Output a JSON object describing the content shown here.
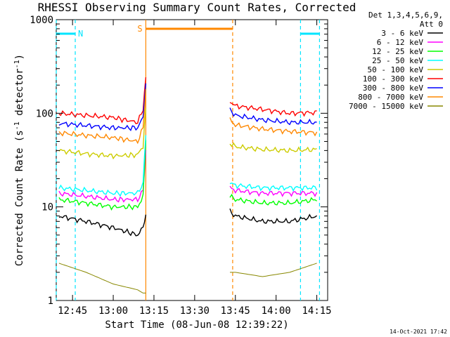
{
  "chart_data": {
    "type": "line",
    "title": "RHESSI Observing Summary Count Rates, Corrected",
    "xlabel": "Start Time (08-Jun-08 12:39:22)",
    "ylabel_main": "Corrected Count Rate (s",
    "ylabel_sup1": "-1",
    "ylabel_mid": " detector",
    "ylabel_sup2": "-1",
    "ylabel_end": ")",
    "yscale": "log",
    "ylim": [
      1,
      1000
    ],
    "xlim": [
      "12:39",
      "14:19"
    ],
    "x_ticks": [
      "12:45",
      "13:00",
      "13:15",
      "13:30",
      "13:45",
      "14:00",
      "14:15"
    ],
    "y_ticks": [
      "1",
      "10",
      "100",
      "1000"
    ],
    "legend_header": [
      "Det 1,3,4,5,6,9,",
      "Att 0"
    ],
    "series": [
      {
        "name": "3 - 6 keV",
        "color": "#000000",
        "x": [
          "12:40",
          "12:50",
          "13:00",
          "13:09",
          "13:11",
          "13:12",
          "13:43",
          "13:45",
          "13:55",
          "14:05",
          "14:15"
        ],
        "y": [
          8,
          7,
          6,
          5,
          6,
          8,
          9,
          8,
          7,
          7,
          8
        ]
      },
      {
        "name": "6 - 12 keV",
        "color": "#ff00ff",
        "x": [
          "12:40",
          "12:50",
          "13:00",
          "13:09",
          "13:11",
          "13:12",
          "13:43",
          "13:45",
          "13:55",
          "14:05",
          "14:15"
        ],
        "y": [
          14,
          13,
          12,
          12,
          15,
          40,
          16,
          15,
          14,
          14,
          14
        ]
      },
      {
        "name": "12 - 25 keV",
        "color": "#00ff00",
        "x": [
          "12:40",
          "12:50",
          "13:00",
          "13:09",
          "13:11",
          "13:12",
          "13:43",
          "13:45",
          "13:55",
          "14:05",
          "14:15"
        ],
        "y": [
          12,
          11,
          10,
          10,
          13,
          50,
          13,
          12,
          11,
          11,
          12
        ]
      },
      {
        "name": "25 - 50 keV",
        "color": "#00ffff",
        "x": [
          "12:40",
          "12:50",
          "13:00",
          "13:09",
          "13:11",
          "13:12",
          "13:43",
          "13:45",
          "13:55",
          "14:05",
          "14:15"
        ],
        "y": [
          16,
          15,
          14,
          14,
          18,
          60,
          18,
          17,
          16,
          16,
          16
        ]
      },
      {
        "name": "50 - 100 keV",
        "color": "#cccc00",
        "x": [
          "12:40",
          "12:50",
          "13:00",
          "13:09",
          "13:11",
          "13:12",
          "13:43",
          "13:45",
          "13:55",
          "14:05",
          "14:15"
        ],
        "y": [
          40,
          37,
          35,
          36,
          45,
          120,
          48,
          44,
          41,
          40,
          41
        ]
      },
      {
        "name": "100 - 300 keV",
        "color": "#ff0000",
        "x": [
          "12:40",
          "12:50",
          "13:00",
          "13:09",
          "13:11",
          "13:12",
          "13:43",
          "13:45",
          "13:55",
          "14:05",
          "14:15"
        ],
        "y": [
          100,
          95,
          90,
          80,
          110,
          240,
          135,
          120,
          110,
          100,
          102
        ]
      },
      {
        "name": "300 - 800 keV",
        "color": "#0000ff",
        "x": [
          "12:40",
          "12:50",
          "13:00",
          "13:09",
          "13:11",
          "13:12",
          "13:43",
          "13:45",
          "13:55",
          "14:05",
          "14:15"
        ],
        "y": [
          78,
          74,
          70,
          70,
          90,
          200,
          110,
          95,
          85,
          80,
          80
        ]
      },
      {
        "name": "800 - 7000 keV",
        "color": "#ff8800",
        "x": [
          "12:40",
          "12:50",
          "13:00",
          "13:09",
          "13:11",
          "13:12",
          "13:43",
          "13:45",
          "13:55",
          "14:05",
          "14:15"
        ],
        "y": [
          62,
          58,
          55,
          50,
          70,
          180,
          85,
          75,
          68,
          64,
          62
        ]
      },
      {
        "name": "7000 - 15000 keV",
        "color": "#888800",
        "x": [
          "12:40",
          "12:50",
          "13:00",
          "13:09",
          "13:11",
          "13:12",
          "13:43",
          "13:45",
          "13:55",
          "14:05",
          "14:15"
        ],
        "y": [
          2.5,
          2,
          1.5,
          1.3,
          1.2,
          1.2,
          2,
          2,
          1.8,
          2,
          2.5
        ]
      }
    ],
    "flags": [
      {
        "label": "N",
        "color": "#00e5ff",
        "spans": [
          [
            "12:39",
            "12:46"
          ],
          [
            "14:09",
            "14:16"
          ]
        ]
      },
      {
        "label": "S",
        "color": "#ff8800",
        "spans": [
          [
            "13:12",
            "13:44"
          ]
        ]
      }
    ],
    "grid": false,
    "legend_position": "right"
  },
  "footer_timestamp": "14-Oct-2021 17:42"
}
